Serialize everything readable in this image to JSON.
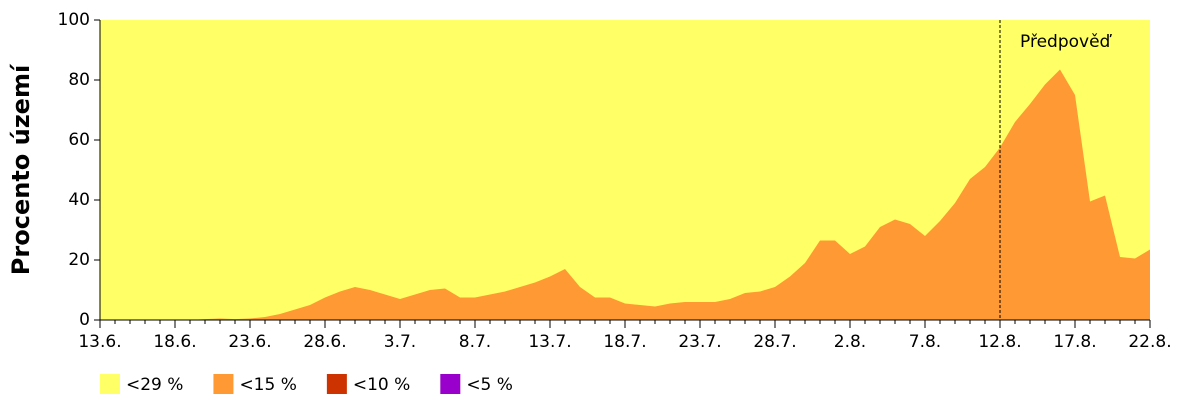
{
  "chart_data": {
    "type": "area",
    "ylabel": "Procento území",
    "categories": [
      "13.6.",
      null,
      null,
      null,
      null,
      "18.6.",
      null,
      null,
      null,
      null,
      "23.6.",
      null,
      null,
      null,
      null,
      "28.6.",
      null,
      null,
      null,
      null,
      "3.7.",
      null,
      null,
      null,
      null,
      "8.7.",
      null,
      null,
      null,
      null,
      "13.7.",
      null,
      null,
      null,
      null,
      "18.7.",
      null,
      null,
      null,
      null,
      "23.7.",
      null,
      null,
      null,
      null,
      "28.7.",
      null,
      null,
      null,
      null,
      "2.8.",
      null,
      null,
      null,
      null,
      "7.8.",
      null,
      null,
      null,
      null,
      "12.8.",
      null,
      null,
      null,
      null,
      "17.8.",
      null,
      null,
      null,
      null,
      "22.8."
    ],
    "series": [
      {
        "name": "<29 %",
        "color": "#ffff66",
        "values": [
          100,
          100,
          100,
          100,
          100,
          100,
          100,
          100,
          100,
          100,
          100,
          100,
          100,
          100,
          100,
          100,
          100,
          100,
          100,
          100,
          100,
          100,
          100,
          100,
          100,
          100,
          100,
          100,
          100,
          100,
          100,
          100,
          100,
          100,
          100,
          100,
          100,
          100,
          100,
          100,
          100,
          100,
          100,
          100,
          100,
          100,
          100,
          100,
          100,
          100,
          100,
          100,
          100,
          100,
          100,
          100,
          100,
          100,
          100,
          100,
          100,
          100,
          100,
          100,
          100,
          100,
          100,
          100,
          100,
          100,
          100
        ]
      },
      {
        "name": "<15 %",
        "color": "#ff9933",
        "values": [
          0,
          0,
          0,
          0,
          0,
          0,
          0,
          0.3,
          0.5,
          0.3,
          0.5,
          1,
          2,
          3.5,
          5,
          7.5,
          9.5,
          11,
          10,
          8.5,
          7,
          8.5,
          10,
          10.5,
          7.5,
          7.5,
          8.5,
          9.5,
          11,
          12.5,
          14.5,
          17,
          11,
          7.5,
          7.5,
          5.5,
          5,
          4.5,
          5.5,
          6,
          6,
          6,
          7,
          9,
          9.5,
          11,
          14.5,
          19,
          26.5,
          26.5,
          22,
          24.5,
          31,
          33.5,
          32,
          28,
          33,
          39,
          47,
          51,
          57.5,
          66,
          72,
          78.5,
          83.5,
          75,
          39.5,
          41.5,
          21,
          20.5,
          23.5
        ]
      },
      {
        "name": "<10 %",
        "color": "#cc3300",
        "values": [
          0,
          0,
          0,
          0,
          0,
          0,
          0,
          0,
          0,
          0,
          0,
          0,
          0,
          0,
          0,
          0,
          0,
          0,
          0,
          0,
          0,
          0,
          0,
          0,
          0,
          0,
          0,
          0,
          0,
          0,
          0,
          0,
          0,
          0,
          0,
          0,
          0,
          0,
          0,
          0,
          0,
          0,
          0,
          0,
          0,
          0,
          0,
          0,
          0,
          0,
          0,
          0,
          0,
          0,
          0,
          0,
          0,
          0,
          0,
          0,
          0,
          0,
          0,
          0,
          0,
          0,
          0,
          0,
          0,
          0,
          0
        ]
      },
      {
        "name": "<5 %",
        "color": "#9900cc",
        "values": [
          0,
          0,
          0,
          0,
          0,
          0,
          0,
          0,
          0,
          0,
          0,
          0,
          0,
          0,
          0,
          0,
          0,
          0,
          0,
          0,
          0,
          0,
          0,
          0,
          0,
          0,
          0,
          0,
          0,
          0,
          0,
          0,
          0,
          0,
          0,
          0,
          0,
          0,
          0,
          0,
          0,
          0,
          0,
          0,
          0,
          0,
          0,
          0,
          0,
          0,
          0,
          0,
          0,
          0,
          0,
          0,
          0,
          0,
          0,
          0,
          0,
          0,
          0,
          0,
          0,
          0,
          0,
          0,
          0,
          0,
          0
        ]
      }
    ],
    "ylim": [
      0,
      100
    ],
    "yticks": [
      0,
      20,
      40,
      60,
      80,
      100
    ],
    "annotation": {
      "text": "Předpověď",
      "category": "12.8."
    },
    "legend": "bottom-left"
  }
}
